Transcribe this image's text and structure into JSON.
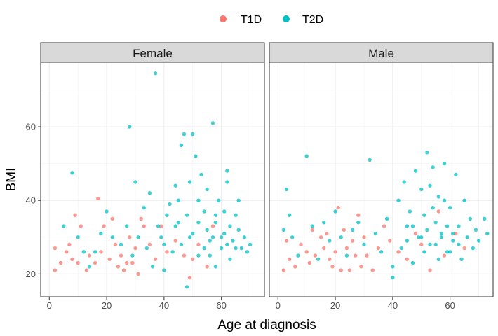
{
  "chart_data": {
    "type": "scatter",
    "xlabel": "Age at diagnosis",
    "ylabel": "BMI",
    "xlim": [
      -3,
      75
    ],
    "ylim": [
      13.8,
      77.5
    ],
    "xticks": [
      0,
      20,
      40,
      60
    ],
    "yticks": [
      20,
      40,
      60
    ],
    "grid": true,
    "legend_position": "top",
    "legend": [
      {
        "name": "T1D",
        "color": "#F8766D"
      },
      {
        "name": "T2D",
        "color": "#00BFC4"
      }
    ],
    "facets": [
      {
        "label": "Female",
        "series": [
          {
            "name": "T1D",
            "color": "#F8766D",
            "points": [
              [
                2,
                27
              ],
              [
                2,
                21
              ],
              [
                4,
                23
              ],
              [
                6,
                26
              ],
              [
                7,
                28
              ],
              [
                8,
                24
              ],
              [
                9,
                36
              ],
              [
                10,
                23
              ],
              [
                11,
                33
              ],
              [
                13,
                21
              ],
              [
                14,
                25
              ],
              [
                16,
                23
              ],
              [
                17,
                40.5
              ],
              [
                18,
                26
              ],
              [
                19,
                33
              ],
              [
                21,
                24
              ],
              [
                22,
                35
              ],
              [
                23,
                28
              ],
              [
                24,
                22
              ],
              [
                25,
                25
              ],
              [
                26,
                21
              ],
              [
                27,
                23
              ],
              [
                28,
                30
              ],
              [
                29,
                23
              ],
              [
                30,
                27
              ],
              [
                31,
                20
              ],
              [
                32,
                35
              ],
              [
                33,
                33
              ],
              [
                35,
                28
              ],
              [
                37,
                24
              ],
              [
                39,
                33
              ],
              [
                41,
                26
              ],
              [
                44,
                29
              ],
              [
                47,
                25
              ],
              [
                49,
                19
              ],
              [
                50,
                24
              ],
              [
                52,
                28
              ],
              [
                55,
                22
              ],
              [
                57,
                33
              ]
            ]
          },
          {
            "name": "T2D",
            "color": "#00BFC4",
            "points": [
              [
                5,
                33
              ],
              [
                8,
                47.5
              ],
              [
                10,
                30
              ],
              [
                12,
                26
              ],
              [
                14,
                22
              ],
              [
                16,
                26
              ],
              [
                18,
                31
              ],
              [
                20,
                37
              ],
              [
                22,
                30
              ],
              [
                25,
                28
              ],
              [
                27,
                33
              ],
              [
                28,
                60
              ],
              [
                29,
                25
              ],
              [
                30,
                45
              ],
              [
                31,
                30
              ],
              [
                33,
                38
              ],
              [
                34,
                27
              ],
              [
                35,
                42
              ],
              [
                36,
                22
              ],
              [
                37,
                74.5
              ],
              [
                38,
                33
              ],
              [
                39,
                30
              ],
              [
                40,
                28
              ],
              [
                40,
                21
              ],
              [
                41,
                36
              ],
              [
                42,
                39
              ],
              [
                43,
                26
              ],
              [
                44,
                44
              ],
              [
                45,
                34
              ],
              [
                46,
                55
              ],
              [
                47,
                58
              ],
              [
                48,
                16.5
              ],
              [
                49,
                30
              ],
              [
                50,
                58
              ],
              [
                51,
                52
              ],
              [
                52,
                25
              ],
              [
                53,
                47
              ],
              [
                54,
                37
              ],
              [
                55,
                43
              ],
              [
                56,
                29
              ],
              [
                57,
                61
              ],
              [
                58,
                34
              ],
              [
                59,
                40
              ],
              [
                60,
                27
              ],
              [
                61,
                31
              ],
              [
                62,
                45
              ],
              [
                63,
                24
              ],
              [
                64,
                29
              ],
              [
                65,
                36
              ],
              [
                66,
                32
              ],
              [
                67,
                27
              ],
              [
                68,
                30
              ],
              [
                69,
                26
              ],
              [
                70,
                28
              ],
              [
                44,
                33
              ],
              [
                46,
                28
              ],
              [
                48,
                36
              ],
              [
                50,
                31
              ],
              [
                52,
                34
              ],
              [
                54,
                27
              ],
              [
                55,
                32
              ],
              [
                57,
                30
              ],
              [
                58,
                36
              ],
              [
                60,
                30
              ],
              [
                62,
                28
              ],
              [
                63,
                33
              ],
              [
                65,
                27
              ],
              [
                58,
                22
              ],
              [
                56,
                25
              ],
              [
                62,
                48
              ],
              [
                52,
                40
              ],
              [
                49,
                45
              ],
              [
                45,
                40
              ],
              [
                61,
                37
              ],
              [
                66,
                40
              ]
            ]
          }
        ]
      },
      {
        "label": "Male",
        "series": [
          {
            "name": "T1D",
            "color": "#F8766D",
            "points": [
              [
                2,
                21
              ],
              [
                3,
                29
              ],
              [
                4,
                24
              ],
              [
                6,
                22
              ],
              [
                8,
                28
              ],
              [
                10,
                26
              ],
              [
                11,
                23
              ],
              [
                12,
                32
              ],
              [
                13,
                25
              ],
              [
                15,
                30
              ],
              [
                16,
                27
              ],
              [
                17,
                31
              ],
              [
                18,
                24
              ],
              [
                19,
                22
              ],
              [
                20,
                26
              ],
              [
                21,
                38
              ],
              [
                22,
                21
              ],
              [
                23,
                32
              ],
              [
                24,
                27
              ],
              [
                25,
                21
              ],
              [
                26,
                29
              ],
              [
                27,
                25
              ],
              [
                28,
                36
              ],
              [
                29,
                22
              ],
              [
                30,
                30
              ],
              [
                31,
                25
              ],
              [
                33,
                21
              ],
              [
                35,
                27
              ],
              [
                37,
                33
              ],
              [
                39,
                29
              ],
              [
                42,
                26
              ],
              [
                45,
                24
              ],
              [
                48,
                31
              ],
              [
                50,
                28
              ],
              [
                53,
                21
              ],
              [
                56,
                37
              ],
              [
                58,
                25
              ],
              [
                62,
                31
              ],
              [
                65,
                27
              ]
            ]
          },
          {
            "name": "T2D",
            "color": "#00BFC4",
            "points": [
              [
                2,
                32
              ],
              [
                3,
                43
              ],
              [
                4,
                36
              ],
              [
                5,
                30
              ],
              [
                7,
                25
              ],
              [
                10,
                52
              ],
              [
                12,
                33
              ],
              [
                14,
                24
              ],
              [
                16,
                34
              ],
              [
                18,
                29
              ],
              [
                20,
                37
              ],
              [
                22,
                30
              ],
              [
                24,
                25
              ],
              [
                26,
                32
              ],
              [
                28,
                34
              ],
              [
                30,
                28
              ],
              [
                32,
                51
              ],
              [
                34,
                31
              ],
              [
                36,
                26
              ],
              [
                38,
                35
              ],
              [
                40,
                22
              ],
              [
                40,
                19
              ],
              [
                42,
                40
              ],
              [
                43,
                27
              ],
              [
                44,
                45
              ],
              [
                45,
                33
              ],
              [
                46,
                37
              ],
              [
                47,
                23
              ],
              [
                48,
                48
              ],
              [
                49,
                30
              ],
              [
                50,
                43
              ],
              [
                51,
                36
              ],
              [
                52,
                53
              ],
              [
                53,
                28
              ],
              [
                54,
                49
              ],
              [
                55,
                34
              ],
              [
                56,
                41
              ],
              [
                57,
                31
              ],
              [
                58,
                50
              ],
              [
                59,
                26
              ],
              [
                60,
                38
              ],
              [
                61,
                29
              ],
              [
                62,
                47
              ],
              [
                63,
                33
              ],
              [
                64,
                24
              ],
              [
                65,
                40
              ],
              [
                66,
                30
              ],
              [
                67,
                35
              ],
              [
                68,
                27
              ],
              [
                69,
                32
              ],
              [
                70,
                29
              ],
              [
                72,
                35
              ],
              [
                73,
                31
              ],
              [
                50,
                30
              ],
              [
                52,
                32
              ],
              [
                55,
                28
              ],
              [
                57,
                30
              ],
              [
                59,
                33
              ],
              [
                61,
                31
              ],
              [
                63,
                28
              ],
              [
                56,
                24
              ],
              [
                54,
                38
              ],
              [
                58,
                40
              ],
              [
                60,
                26
              ],
              [
                47,
                33
              ],
              [
                45,
                29
              ],
              [
                51,
                26
              ],
              [
                53,
                44
              ]
            ]
          }
        ]
      }
    ]
  }
}
